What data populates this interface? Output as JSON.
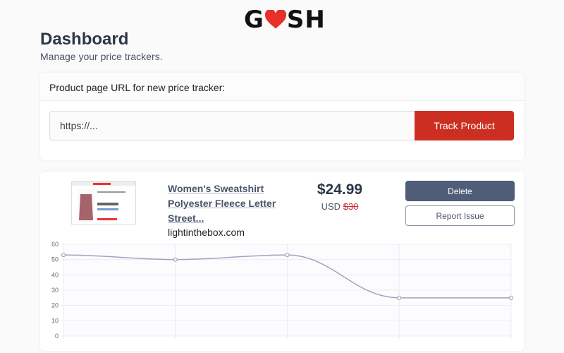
{
  "logo": {
    "text": "GOSH",
    "heart_color": "#e8302a"
  },
  "header": {
    "title": "Dashboard",
    "subtitle": "Manage your price trackers."
  },
  "new_tracker": {
    "label": "Product page URL for new price tracker:",
    "placeholder": "https://...",
    "button": "Track Product",
    "button_color": "#cc2f22"
  },
  "trackers": [
    {
      "title": "Women's Sweatshirt Polyester Fleece Letter Street...",
      "domain": "lightinthebox.com",
      "price": "$24.99",
      "currency": "USD",
      "original_price": "$30",
      "delete_label": "Delete",
      "report_label": "Report Issue"
    }
  ],
  "chart_data": {
    "type": "line",
    "x": [
      1,
      2,
      3,
      4,
      5
    ],
    "values": [
      53,
      50,
      53,
      25,
      25
    ],
    "ylim": [
      0,
      60
    ],
    "yticks": [
      "0",
      "10",
      "20",
      "30",
      "40",
      "50",
      "60"
    ],
    "grid": true,
    "line_color": "#a0a3bd"
  }
}
